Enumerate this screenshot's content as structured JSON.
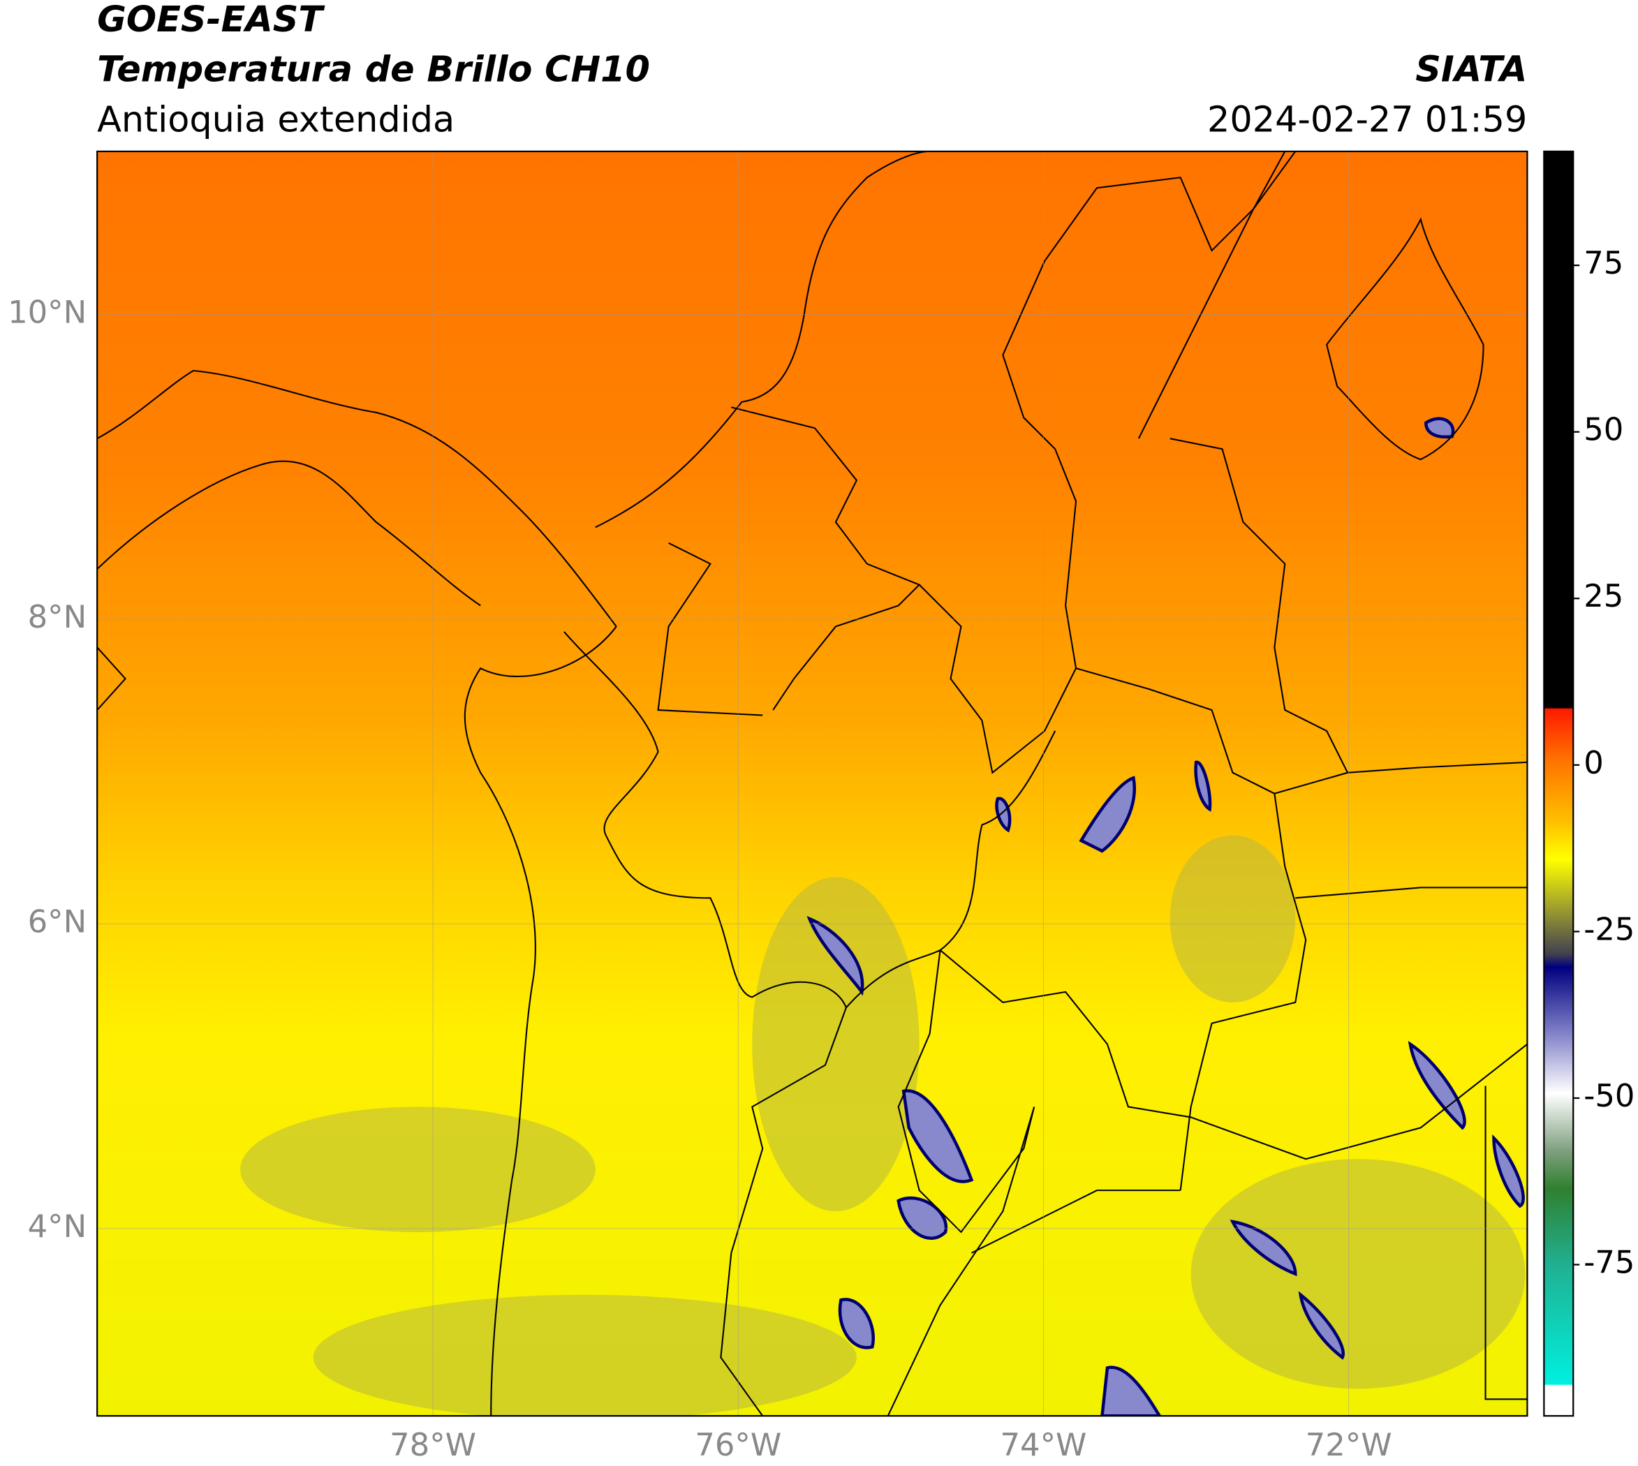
{
  "header": {
    "title": "GOES-EAST",
    "subtitle": "Temperatura de Brillo CH10",
    "region": "Antioquia extendida",
    "source": "SIATA",
    "datetime": "2024-02-27 01:59"
  },
  "map": {
    "xlim": [
      -80.2,
      -70.83
    ],
    "ylim": [
      2.77,
      11.07
    ],
    "grid": true,
    "xticks": [
      {
        "value": -78,
        "label": "78°W"
      },
      {
        "value": -76,
        "label": "76°W"
      },
      {
        "value": -74,
        "label": "74°W"
      },
      {
        "value": -72,
        "label": "72°W"
      }
    ],
    "yticks": [
      {
        "value": 10,
        "label": "10°N"
      },
      {
        "value": 8,
        "label": "8°N"
      },
      {
        "value": 6,
        "label": "6°N"
      },
      {
        "value": 4,
        "label": "4°N"
      }
    ]
  },
  "colorbar": {
    "lim": [
      -97.7,
      92.1
    ],
    "ticks": [
      75,
      50,
      25,
      0,
      -25,
      -50,
      -75
    ]
  }
}
